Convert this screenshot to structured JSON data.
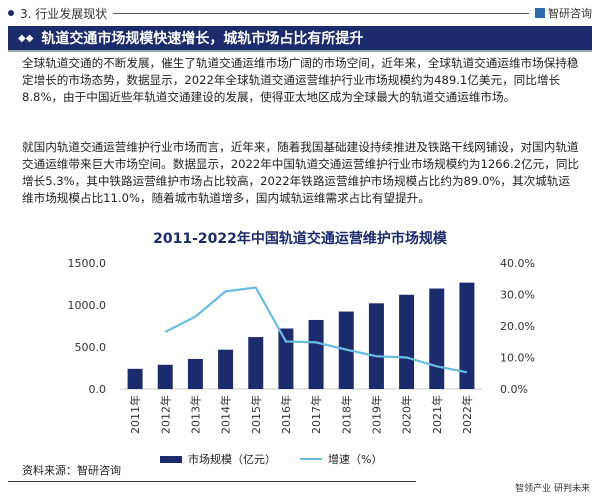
{
  "header": {
    "section": "3. 行业发展现状",
    "brand": "智研咨询"
  },
  "banner": {
    "title": "轨道交通市场规模快速增长，城轨市场占比有所提升"
  },
  "paragraphs": [
    "全球轨道交通的不断发展，催生了轨道交通运维市场广阔的市场空间，近年来，全球轨道交通运维市场保持稳定增长的市场态势，数据显示，2022年全球轨道交通运营维护行业市场规模约为489.1亿美元，同比增长8.8%，由于中国近些年轨道交通建设的发展，使得亚太地区成为全球最大的轨道交通运维市场。",
    "就国内轨道交通运营维护行业市场而言，近年来，随着我国基础建设持续推进及铁路干线网铺设，对国内轨道交通运维带来巨大市场空间。数据显示，2022年中国轨道交通运营维护行业市场规模约为1266.2亿元，同比增长5.3%，其中铁路运营维护市场占比较高，2022年铁路运营维护市场规模占比约为89.0%，其次城轨运维市场规模占比11.0%，随着城市轨道增多，国内城轨运维需求占比有望提升。"
  ],
  "chart_data": {
    "type": "bar+line",
    "title": "2011-2022年中国轨道交通运营维护市场规模",
    "categories": [
      "2011年",
      "2012年",
      "2013年",
      "2014年",
      "2015年",
      "2016年",
      "2017年",
      "2018年",
      "2019年",
      "2020年",
      "2021年",
      "2022年"
    ],
    "series": [
      {
        "name": "市场规模（亿元）",
        "type": "bar",
        "axis": "left",
        "color": "#1c2b6b",
        "values": [
          240,
          288,
          358,
          468,
          618,
          720,
          822,
          922,
          1020,
          1122,
          1196,
          1266.2
        ]
      },
      {
        "name": "增速（%）",
        "type": "line",
        "axis": "right",
        "color": "#6bbbe0",
        "values": [
          null,
          18.1,
          23.0,
          31.0,
          32.2,
          15.1,
          14.8,
          12.5,
          10.4,
          10.0,
          7.2,
          5.3
        ]
      }
    ],
    "yleft": {
      "ylim": [
        0,
        1500
      ],
      "ticks": [
        "0.0",
        "500.0",
        "1000.0",
        "1500.0"
      ]
    },
    "yright": {
      "ylim": [
        0,
        40
      ],
      "ticks": [
        "0.0%",
        "10.0%",
        "20.0%",
        "30.0%",
        "40.0%"
      ]
    },
    "grid": false,
    "legend": "bottom"
  },
  "source": "资料来源：智研咨询",
  "slogan": "智领产业 研判未来"
}
